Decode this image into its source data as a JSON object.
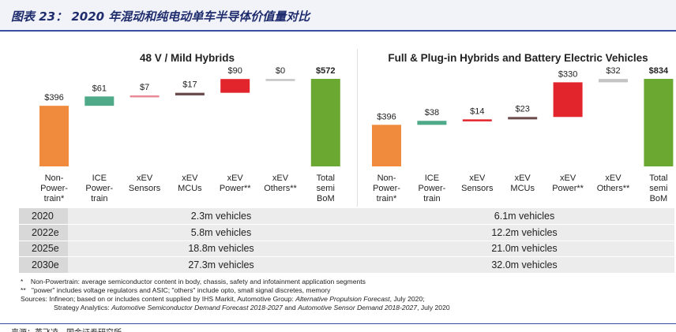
{
  "figure": {
    "title": "图表 23： 2020 年混动和纯电动单车半导体价值量对比",
    "source_cn": "来源：英飞凌，国金证券研究所"
  },
  "chart_data": [
    {
      "type": "bar",
      "subtype": "waterfall",
      "title": "48 V / Mild Hybrids",
      "categories": [
        "Non-Power-train*",
        "ICE Power-train",
        "xEV Sensors",
        "xEV MCUs",
        "xEV Power**",
        "xEV Others**",
        "Total semi BoM"
      ],
      "category_lines": [
        [
          "Non-",
          "Power-",
          "train*"
        ],
        [
          "ICE",
          "Power-",
          "train"
        ],
        [
          "xEV",
          "Sensors"
        ],
        [
          "xEV",
          "MCUs"
        ],
        [
          "xEV",
          "Power**"
        ],
        [
          "xEV",
          "Others**"
        ],
        [
          "Total",
          "semi",
          "BoM"
        ]
      ],
      "values": [
        396,
        61,
        7,
        17,
        90,
        0,
        572
      ],
      "value_labels": [
        "$396",
        "$61",
        "$7",
        "$17",
        "$90",
        "$0",
        "$572"
      ],
      "colors": [
        "#f08a3c",
        "#4faa8a",
        "#e98a96",
        "#6b4b4b",
        "#e2242c",
        "#c4c4c4",
        "#6aa832"
      ],
      "ylim": [
        0,
        620
      ]
    },
    {
      "type": "bar",
      "subtype": "waterfall",
      "title": "Full & Plug-in Hybrids and Battery Electric Vehicles",
      "categories": [
        "Non-Power-train*",
        "ICE Power-train",
        "xEV Sensors",
        "xEV MCUs",
        "xEV Power**",
        "xEV Others**",
        "Total semi BoM"
      ],
      "category_lines": [
        [
          "Non-",
          "Power-",
          "train*"
        ],
        [
          "ICE",
          "Power-",
          "train"
        ],
        [
          "xEV",
          "Sensors"
        ],
        [
          "xEV",
          "MCUs"
        ],
        [
          "xEV",
          "Power**"
        ],
        [
          "xEV",
          "Others**"
        ],
        [
          "Total",
          "semi",
          "BoM"
        ]
      ],
      "values": [
        396,
        38,
        14,
        23,
        330,
        32,
        834
      ],
      "value_labels": [
        "$396",
        "$38",
        "$14",
        "$23",
        "$330",
        "$32",
        "$834"
      ],
      "colors": [
        "#f08a3c",
        "#4faa8a",
        "#e2242c",
        "#6b4b4b",
        "#e2242c",
        "#c4c4c4",
        "#6aa832"
      ],
      "ylim": [
        0,
        880
      ]
    }
  ],
  "vehicle_table": {
    "rows": [
      {
        "year": "2020",
        "left": "2.3m vehicles",
        "right": "6.1m vehicles"
      },
      {
        "year": "2022e",
        "left": "5.8m vehicles",
        "right": "12.2m vehicles"
      },
      {
        "year": "2025e",
        "left": "18.8m vehicles",
        "right": "21.0m vehicles"
      },
      {
        "year": "2030e",
        "left": "27.3m vehicles",
        "right": "32.0m vehicles"
      }
    ]
  },
  "notes": {
    "n1_mark": "*",
    "n1_text": "Non-Powertrain: average semiconductor content in body, chassis, safety and infotainment application segments",
    "n2_mark": "**",
    "n2_text": "\"power\" includes voltage regulators and ASIC; \"others\" include opto, small signal discretes, memory",
    "src1_pre": "Sources: Infineon; based on or includes content supplied by IHS Markit, Automotive Group: ",
    "src1_italic": "Alternative Propulsion Forecast",
    "src1_post": ", July 2020;",
    "src2_pre": "Strategy Analytics: ",
    "src2_italic1": "Automotive Semiconductor Demand Forecast 2018-2027",
    "src2_mid": " and ",
    "src2_italic2": "Automotive Sensor Demand 2018-2027",
    "src2_post": ", July 2020"
  }
}
